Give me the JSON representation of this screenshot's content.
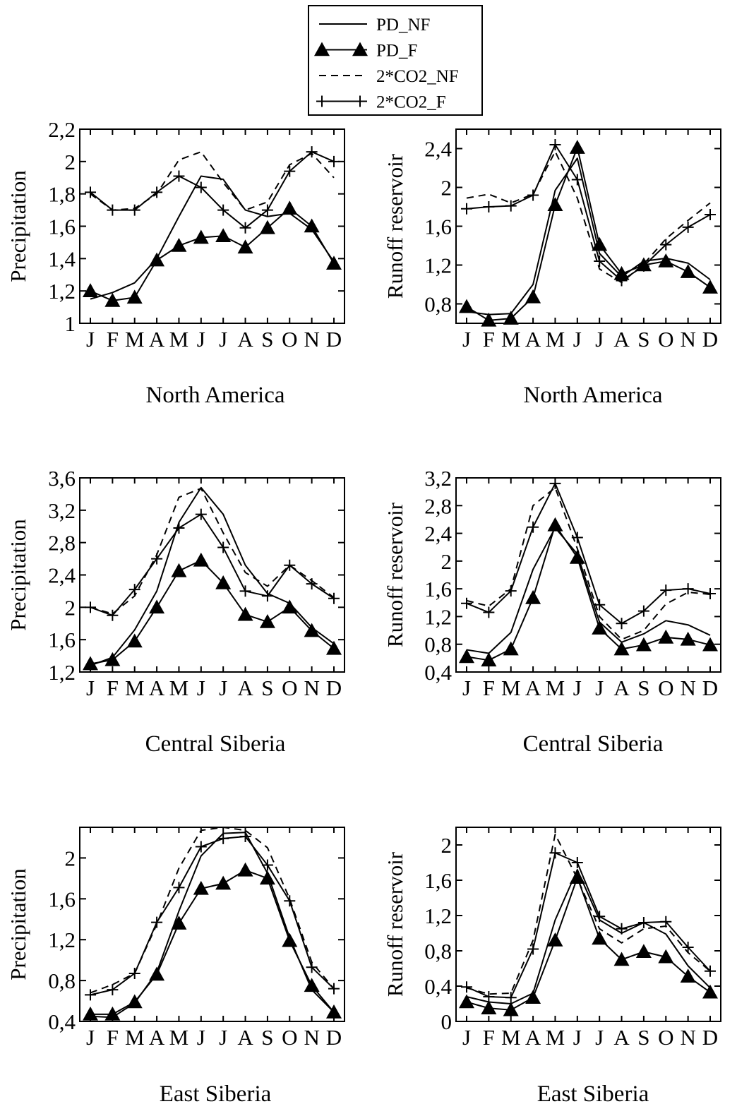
{
  "legend": [
    {
      "label": "PD_NF",
      "style": "solid"
    },
    {
      "label": "PD_F",
      "style": "solid-triangle"
    },
    {
      "label": "2*CO2_NF",
      "style": "dashed"
    },
    {
      "label": "2*CO2_F",
      "style": "solid-plus"
    }
  ],
  "colors": {
    "line": "#000000",
    "background": "#ffffff"
  },
  "chart_data": [
    {
      "type": "line",
      "title": "North America",
      "ylabel": "Precipitation",
      "categories": [
        "J",
        "F",
        "M",
        "A",
        "M",
        "J",
        "J",
        "A",
        "S",
        "O",
        "N",
        "D"
      ],
      "ylim": [
        1.0,
        2.2
      ],
      "yticks": [
        "1",
        "1,2",
        "1,4",
        "1,6",
        "1,8",
        "2",
        "2,2"
      ],
      "ytick_values": [
        1.0,
        1.2,
        1.4,
        1.6,
        1.8,
        2.0,
        2.2
      ],
      "series": [
        {
          "name": "PD_NF",
          "values": [
            1.15,
            1.19,
            1.25,
            1.4,
            1.66,
            1.91,
            1.89,
            1.7,
            1.66,
            1.68,
            1.58,
            1.38
          ]
        },
        {
          "name": "PD_F",
          "values": [
            1.2,
            1.14,
            1.16,
            1.39,
            1.48,
            1.53,
            1.54,
            1.47,
            1.59,
            1.71,
            1.6,
            1.37
          ]
        },
        {
          "name": "2*CO2_NF",
          "values": [
            1.8,
            1.7,
            1.71,
            1.8,
            2.01,
            2.06,
            1.87,
            1.7,
            1.75,
            1.98,
            2.05,
            1.9
          ]
        },
        {
          "name": "2*CO2_F",
          "values": [
            1.81,
            1.7,
            1.7,
            1.81,
            1.91,
            1.84,
            1.7,
            1.59,
            1.7,
            1.94,
            2.06,
            2.0
          ]
        }
      ]
    },
    {
      "type": "line",
      "title": "North America",
      "ylabel": "Runoff reservoir",
      "categories": [
        "J",
        "F",
        "M",
        "A",
        "M",
        "J",
        "J",
        "A",
        "S",
        "O",
        "N",
        "D"
      ],
      "ylim": [
        0.6,
        2.6
      ],
      "yticks": [
        "0,8",
        "1,2",
        "1,6",
        "2",
        "2,4"
      ],
      "ytick_values": [
        0.8,
        1.2,
        1.6,
        2.0,
        2.4
      ],
      "series": [
        {
          "name": "PD_NF",
          "values": [
            0.72,
            0.69,
            0.7,
            1.0,
            1.97,
            2.3,
            1.32,
            1.08,
            1.24,
            1.27,
            1.22,
            1.05
          ]
        },
        {
          "name": "PD_F",
          "values": [
            0.77,
            0.63,
            0.65,
            0.87,
            1.82,
            2.41,
            1.41,
            1.11,
            1.2,
            1.24,
            1.13,
            0.97
          ]
        },
        {
          "name": "2*CO2_NF",
          "values": [
            1.89,
            1.93,
            1.84,
            1.93,
            2.37,
            1.89,
            1.16,
            1.02,
            1.21,
            1.47,
            1.66,
            1.84
          ]
        },
        {
          "name": "2*CO2_F",
          "values": [
            1.78,
            1.8,
            1.81,
            1.92,
            2.44,
            2.08,
            1.24,
            1.04,
            1.19,
            1.41,
            1.59,
            1.72
          ]
        }
      ]
    },
    {
      "type": "line",
      "title": "Central Siberia",
      "ylabel": "Precipitation",
      "categories": [
        "J",
        "F",
        "M",
        "A",
        "M",
        "J",
        "J",
        "A",
        "S",
        "O",
        "N",
        "D"
      ],
      "ylim": [
        1.2,
        3.6
      ],
      "yticks": [
        "1,2",
        "1,6",
        "2",
        "2,4",
        "2,8",
        "3,2",
        "3,6"
      ],
      "ytick_values": [
        1.2,
        1.6,
        2.0,
        2.4,
        2.8,
        3.2,
        3.6
      ],
      "series": [
        {
          "name": "PD_NF",
          "values": [
            1.28,
            1.38,
            1.72,
            2.2,
            3.05,
            3.48,
            3.15,
            2.52,
            2.17,
            2.05,
            1.75,
            1.55
          ]
        },
        {
          "name": "PD_F",
          "values": [
            1.3,
            1.35,
            1.58,
            2.0,
            2.45,
            2.58,
            2.3,
            1.91,
            1.82,
            2.0,
            1.71,
            1.49
          ]
        },
        {
          "name": "2*CO2_NF",
          "values": [
            2.0,
            1.92,
            2.14,
            2.65,
            3.36,
            3.47,
            2.92,
            2.43,
            2.26,
            2.52,
            2.33,
            2.12
          ]
        },
        {
          "name": "2*CO2_F",
          "values": [
            2.0,
            1.9,
            2.22,
            2.6,
            2.98,
            3.15,
            2.74,
            2.2,
            2.14,
            2.52,
            2.29,
            2.11
          ]
        }
      ]
    },
    {
      "type": "line",
      "title": "Central Siberia",
      "ylabel": "Runoff reservoir",
      "categories": [
        "J",
        "F",
        "M",
        "A",
        "M",
        "J",
        "J",
        "A",
        "S",
        "O",
        "N",
        "D"
      ],
      "ylim": [
        0.4,
        3.2
      ],
      "yticks": [
        "0,4",
        "0,8",
        "1,2",
        "1,6",
        "2",
        "2,4",
        "2,8",
        "3,2"
      ],
      "ytick_values": [
        0.4,
        0.8,
        1.2,
        1.6,
        2.0,
        2.4,
        2.8,
        3.2
      ],
      "series": [
        {
          "name": "PD_NF",
          "values": [
            0.72,
            0.67,
            0.97,
            1.88,
            2.48,
            2.1,
            1.12,
            0.83,
            0.95,
            1.14,
            1.08,
            0.93
          ]
        },
        {
          "name": "PD_F",
          "values": [
            0.62,
            0.57,
            0.73,
            1.47,
            2.52,
            2.05,
            1.03,
            0.73,
            0.79,
            0.9,
            0.87,
            0.79
          ]
        },
        {
          "name": "2*CO2_NF",
          "values": [
            1.43,
            1.35,
            1.6,
            2.8,
            3.06,
            2.18,
            1.2,
            0.87,
            1.0,
            1.38,
            1.55,
            1.52
          ]
        },
        {
          "name": "2*CO2_F",
          "values": [
            1.39,
            1.26,
            1.57,
            2.49,
            3.12,
            2.34,
            1.37,
            1.1,
            1.28,
            1.58,
            1.6,
            1.53
          ]
        }
      ]
    },
    {
      "type": "line",
      "title": "East Siberia",
      "ylabel": "Precipitation",
      "categories": [
        "J",
        "F",
        "M",
        "A",
        "M",
        "J",
        "J",
        "A",
        "S",
        "O",
        "N",
        "D"
      ],
      "ylim": [
        0.4,
        2.3
      ],
      "yticks": [
        "0,4",
        "0,8",
        "1,2",
        "1,6",
        "2"
      ],
      "ytick_values": [
        0.4,
        0.8,
        1.2,
        1.6,
        2.0
      ],
      "series": [
        {
          "name": "PD_NF",
          "values": [
            0.45,
            0.44,
            0.58,
            0.88,
            1.48,
            2.02,
            2.24,
            2.25,
            1.85,
            1.22,
            0.71,
            0.49
          ]
        },
        {
          "name": "PD_F",
          "values": [
            0.47,
            0.47,
            0.59,
            0.86,
            1.36,
            1.7,
            1.75,
            1.88,
            1.8,
            1.19,
            0.75,
            0.49
          ]
        },
        {
          "name": "2*CO2_NF",
          "values": [
            0.68,
            0.76,
            0.87,
            1.35,
            1.9,
            2.27,
            2.3,
            2.27,
            2.1,
            1.6,
            0.98,
            0.72
          ]
        },
        {
          "name": "2*CO2_F",
          "values": [
            0.66,
            0.71,
            0.87,
            1.37,
            1.71,
            2.11,
            2.19,
            2.21,
            1.93,
            1.58,
            0.93,
            0.72
          ]
        }
      ]
    },
    {
      "type": "line",
      "title": "East Siberia",
      "ylabel": "Runoff reservoir",
      "categories": [
        "J",
        "F",
        "M",
        "A",
        "M",
        "J",
        "J",
        "A",
        "S",
        "O",
        "N",
        "D"
      ],
      "ylim": [
        0.0,
        2.2
      ],
      "yticks": [
        "0",
        "0,4",
        "0,8",
        "1,2",
        "1,6",
        "2"
      ],
      "ytick_values": [
        0.0,
        0.4,
        0.8,
        1.2,
        1.6,
        2.0
      ],
      "series": [
        {
          "name": "PD_NF",
          "values": [
            0.28,
            0.22,
            0.2,
            0.32,
            1.15,
            1.72,
            1.15,
            1.0,
            1.12,
            0.99,
            0.63,
            0.38
          ]
        },
        {
          "name": "PD_F",
          "values": [
            0.22,
            0.15,
            0.13,
            0.27,
            0.92,
            1.63,
            0.94,
            0.7,
            0.79,
            0.73,
            0.51,
            0.33
          ]
        },
        {
          "name": "2*CO2_NF",
          "values": [
            0.38,
            0.31,
            0.32,
            0.92,
            2.12,
            1.62,
            1.05,
            0.89,
            1.05,
            1.08,
            0.78,
            0.57
          ]
        },
        {
          "name": "2*CO2_F",
          "values": [
            0.39,
            0.28,
            0.27,
            0.82,
            1.91,
            1.8,
            1.19,
            1.05,
            1.12,
            1.13,
            0.84,
            0.57
          ]
        }
      ]
    }
  ]
}
